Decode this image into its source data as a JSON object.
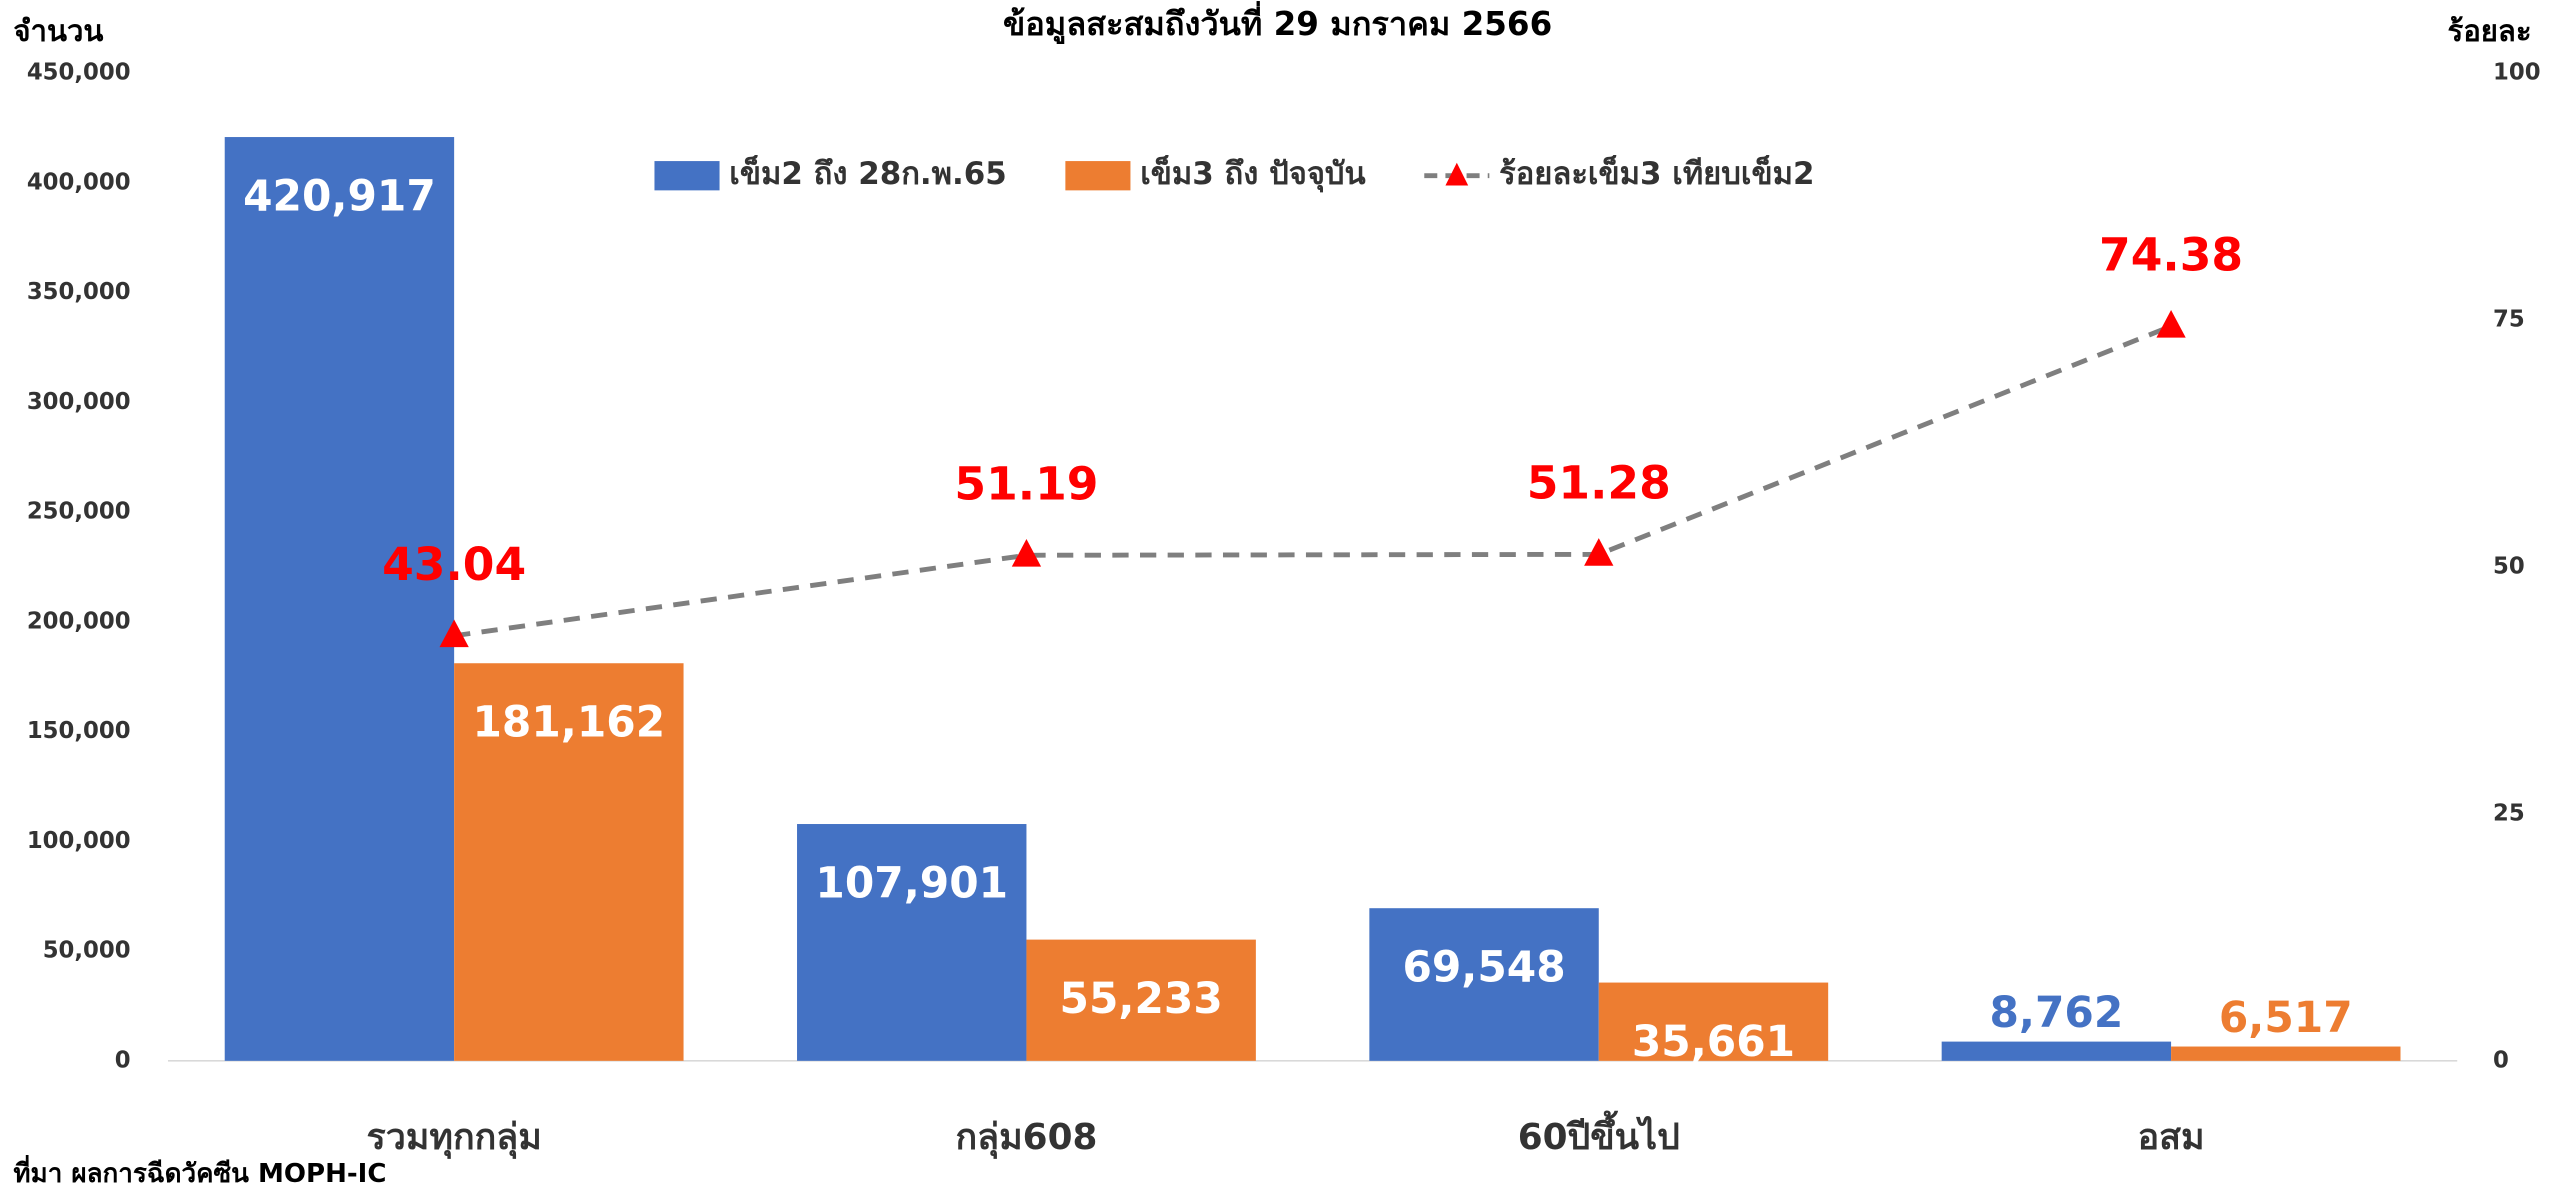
{
  "chart_data": {
    "type": "bar",
    "title": "ข้อมูลสะสมถึงวันที่ 29 มกราคม 2566",
    "y_label": "จำนวน",
    "y2_label": "ร้อยละ",
    "source": "ที่มา ผลการฉีดวัคซีน MOPH-IC",
    "categories": [
      "รวมทุกกลุ่ม",
      "กลุ่ม608",
      "60ปีขึ้นไป",
      "อสม"
    ],
    "series": [
      {
        "name": "เข็ม2 ถึง 28ก.พ.65",
        "type": "bar",
        "color": "#4472c4",
        "values": [
          420917,
          107901,
          69548,
          8762
        ],
        "value_labels": [
          "420,917",
          "107,901",
          "69,548",
          "8,762"
        ]
      },
      {
        "name": "เข็ม3 ถึง ปัจจุบัน",
        "type": "bar",
        "color": "#ed7d31",
        "values": [
          181162,
          55233,
          35661,
          6517
        ],
        "value_labels": [
          "181,162",
          "55,233",
          "35,661",
          "6,517"
        ]
      },
      {
        "name": "ร้อยละเข็ม3 เทียบเข็ม2",
        "type": "line",
        "axis": "y2",
        "color": "#7f7f7f",
        "marker_color": "#ff0000",
        "values": [
          43.04,
          51.19,
          51.28,
          74.38
        ]
      }
    ],
    "ylim": [
      0,
      450000
    ],
    "yticks": [
      0,
      {
        "value": 50000,
        "label": "50,000"
      },
      {
        "value": 100000,
        "label": "100,000"
      },
      {
        "value": 150000,
        "label": "150,000"
      },
      {
        "value": 200000,
        "label": "200,000"
      },
      {
        "value": 250000,
        "label": "250,000"
      },
      {
        "value": 300000,
        "label": "300,000"
      },
      {
        "value": 350000,
        "label": "350,000"
      },
      {
        "value": 400000,
        "label": "400,000"
      },
      {
        "value": 450000,
        "label": "450,000"
      }
    ],
    "y2lim": [
      0,
      100
    ],
    "y2ticks": [
      0,
      25,
      50,
      75,
      100
    ]
  }
}
